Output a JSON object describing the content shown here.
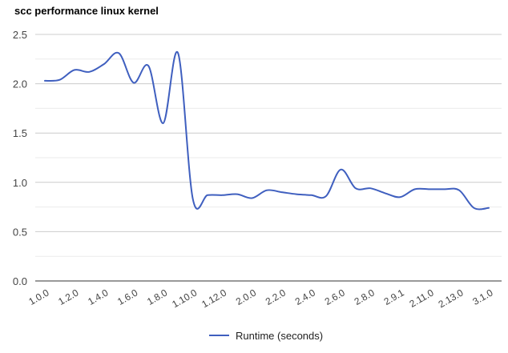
{
  "chart_data": {
    "type": "line",
    "title": "scc performance linux kernel",
    "xlabel": "",
    "ylabel": "",
    "ylim": [
      0,
      2.5
    ],
    "yticks": [
      "0.0",
      "0.5",
      "1.0",
      "1.5",
      "2.0",
      "2.5"
    ],
    "xtick_labels": [
      "1.0.0",
      "1.2.0",
      "1.4.0",
      "1.6.0",
      "1.8.0",
      "1.10.0",
      "1.12.0",
      "2.0.0",
      "2.2.0",
      "2.4.0",
      "2.6.0",
      "2.8.0",
      "2.9.1",
      "2.11.0",
      "2.13.0",
      "3.1.0"
    ],
    "legend_position": "bottom",
    "grid": true,
    "series": [
      {
        "name": "Runtime (seconds)",
        "color": "#3f5fbf",
        "values": [
          2.03,
          2.04,
          2.14,
          2.12,
          2.2,
          2.31,
          2.01,
          2.18,
          1.6,
          2.31,
          0.83,
          0.87,
          0.87,
          0.88,
          0.84,
          0.92,
          0.9,
          0.88,
          0.87,
          0.86,
          1.13,
          0.94,
          0.94,
          0.89,
          0.85,
          0.93,
          0.93,
          0.93,
          0.92,
          0.74,
          0.74
        ]
      }
    ]
  }
}
